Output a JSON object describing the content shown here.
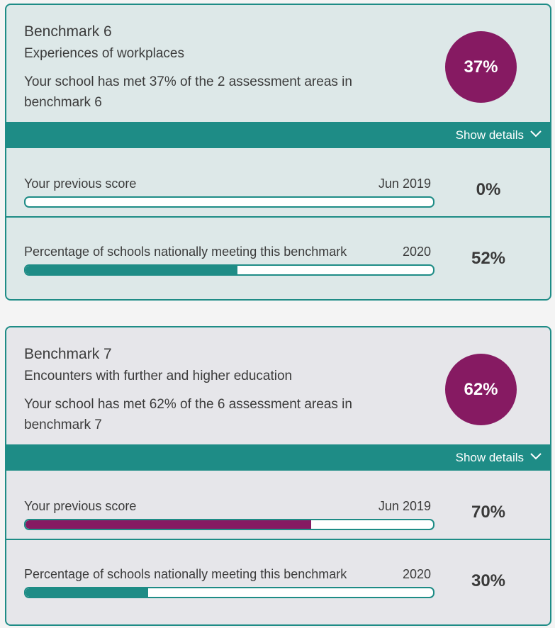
{
  "colors": {
    "teal": "#1e8c86",
    "magenta": "#861a62",
    "card6_bg": "#dde8e8",
    "card7_bg": "#e6e6ea"
  },
  "cards": [
    {
      "title": "Benchmark 6",
      "subtitle": "Experiences of workplaces",
      "description": "Your school has met 37% of the 2 assessment areas in benchmark 6",
      "score_label": "37%",
      "show_details_label": "Show details",
      "previous": {
        "label": "Your previous score",
        "date": "Jun 2019",
        "value_label": "0%",
        "value": 0,
        "fill_color": "#861a62"
      },
      "national": {
        "label": "Percentage of schools nationally meeting this benchmark",
        "date": "2020",
        "value_label": "52%",
        "value": 52,
        "fill_color": "#1e8c86"
      }
    },
    {
      "title": "Benchmark 7",
      "subtitle": "Encounters with further and higher education",
      "description": "Your school has met 62% of the 6 assessment areas in benchmark 7",
      "score_label": "62%",
      "show_details_label": "Show details",
      "previous": {
        "label": "Your previous score",
        "date": "Jun 2019",
        "value_label": "70%",
        "value": 70,
        "fill_color": "#861a62"
      },
      "national": {
        "label": "Percentage of schools nationally meeting this benchmark",
        "date": "2020",
        "value_label": "30%",
        "value": 30,
        "fill_color": "#1e8c86"
      }
    }
  ]
}
